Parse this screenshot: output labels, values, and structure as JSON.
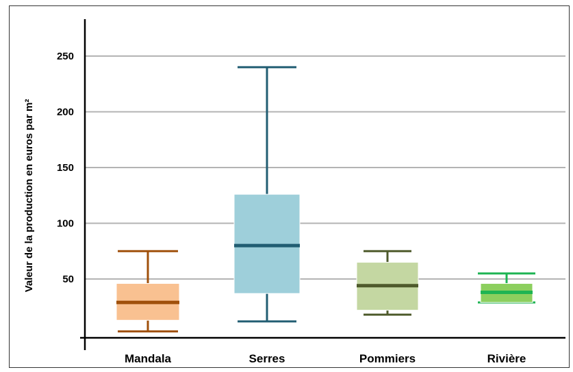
{
  "chart_data": {
    "type": "boxplot",
    "ylabel": "Valeur de la production en euros par m²",
    "xlabel": "",
    "ylim": [
      -5,
      280
    ],
    "yticks": [
      50,
      100,
      150,
      200,
      250
    ],
    "grid": true,
    "categories": [
      "Mandala",
      "Serres",
      "Pommiers",
      "Rivière"
    ],
    "boxes": [
      {
        "name": "Mandala",
        "min": 3,
        "q1": 13,
        "median": 29,
        "q3": 46,
        "max": 75,
        "box_color": "#f9c191",
        "line_color": "#a0500b"
      },
      {
        "name": "Serres",
        "min": 12,
        "q1": 37,
        "median": 80,
        "q3": 126,
        "max": 240,
        "box_color": "#9ecfda",
        "line_color": "#215d72"
      },
      {
        "name": "Pommiers",
        "min": 18,
        "q1": 22,
        "median": 44,
        "q3": 65,
        "max": 75,
        "box_color": "#c4d7a2",
        "line_color": "#4e5a2b"
      },
      {
        "name": "Rivière",
        "min": 29,
        "q1": 29,
        "median": 38,
        "q3": 46,
        "max": 55,
        "box_color": "#8ccf5e",
        "line_color": "#1eb453"
      }
    ]
  }
}
